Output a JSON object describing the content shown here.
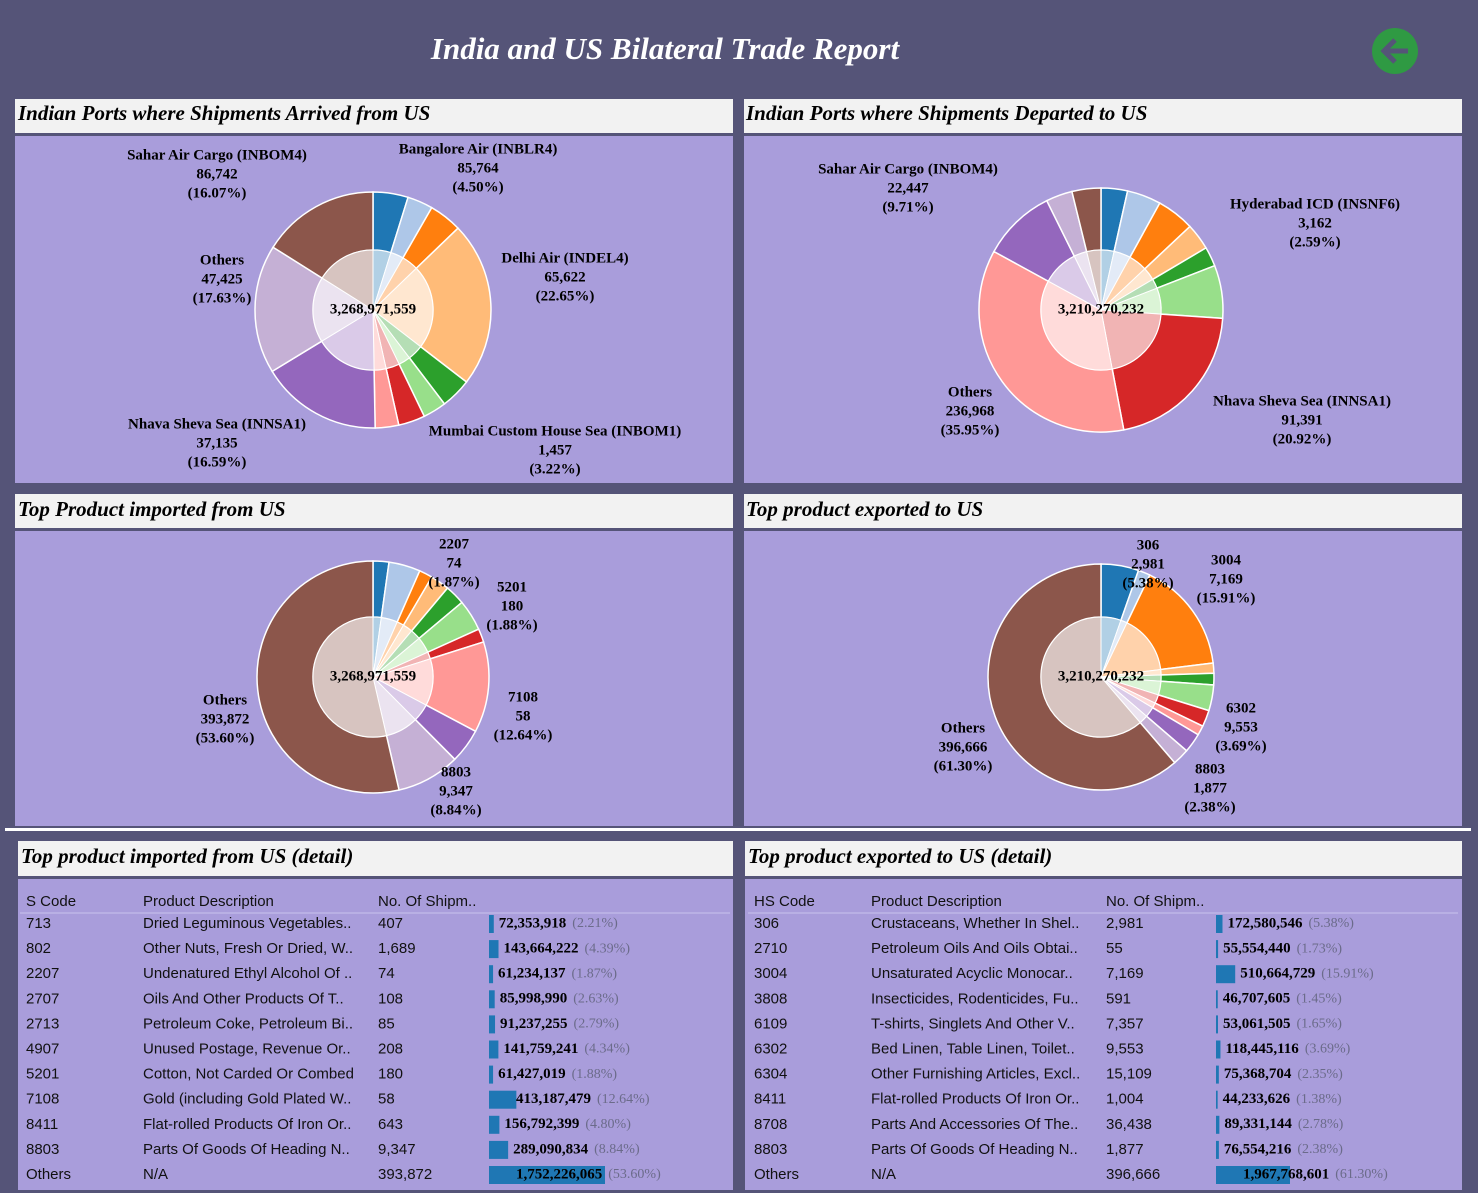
{
  "title": "India and US Bilateral Trade Report",
  "chart_data": [
    {
      "type": "pie",
      "title": "Indian Ports where Shipments Arrived from US",
      "center_label": "3,268,971,559",
      "categories": [
        null,
        null,
        "Bangalore Air (INBLR4)",
        "Delhi Air (INDEL4)",
        null,
        null,
        null,
        "Mumbai Custom House Sea (INBOM1)",
        "Nhava Sheva Sea (INNSA1)",
        "Others",
        "Sahar Air Cargo (INBOM4)"
      ],
      "values": [
        4.8,
        3.5,
        4.5,
        22.65,
        4.2,
        3.2,
        3.64,
        3.22,
        16.59,
        17.63,
        16.07
      ],
      "value_labels": [
        null,
        null,
        "(4.50%)",
        "(22.65%)",
        null,
        null,
        null,
        "(3.22%)",
        "(16.59%)",
        "(17.63%)",
        "(16.07%)"
      ],
      "count_labels": [
        null,
        null,
        "85,764",
        "65,622",
        null,
        null,
        null,
        "1,457",
        "37,135",
        "47,425",
        "86,742"
      ],
      "colors": [
        "#1f77b4",
        "#aec7e8",
        "#ff7f0e",
        "#ffbb78",
        "#2ca02c",
        "#98df8a",
        "#d62728",
        "#ff9896",
        "#9467bd",
        "#c5b0d5",
        "#8c564b"
      ]
    },
    {
      "type": "pie",
      "title": "Indian Ports where Shipments Departed to US",
      "center_label": "3,210,270,232",
      "categories": [
        null,
        null,
        null,
        null,
        "Hyderabad ICD (INSNF6)",
        null,
        "Nhava Sheva Sea (INNSA1)",
        "Others",
        "Sahar Air Cargo (INBOM4)",
        null,
        null
      ],
      "values": [
        3.5,
        4.5,
        5,
        3.5,
        2.59,
        7,
        20.92,
        35.95,
        9.71,
        3.5,
        3.83
      ],
      "value_labels": [
        null,
        null,
        null,
        null,
        "(2.59%)",
        null,
        "(20.92%)",
        "(35.95%)",
        "(9.71%)",
        null,
        null
      ],
      "count_labels": [
        null,
        null,
        null,
        null,
        "3,162",
        null,
        "91,391",
        "236,968",
        "22,447",
        null,
        null
      ],
      "colors": [
        "#1f77b4",
        "#aec7e8",
        "#ff7f0e",
        "#ffbb78",
        "#2ca02c",
        "#98df8a",
        "#d62728",
        "#ff9896",
        "#9467bd",
        "#c5b0d5",
        "#8c564b"
      ]
    },
    {
      "type": "pie",
      "title": "Top Product imported from US",
      "center_label": "3,268,971,559",
      "categories": [
        null,
        null,
        "2207",
        null,
        null,
        null,
        "5201",
        "7108",
        null,
        "8803",
        "Others"
      ],
      "values": [
        2.21,
        4.39,
        1.87,
        2.63,
        2.79,
        4.34,
        1.88,
        12.64,
        4.8,
        8.84,
        53.6
      ],
      "value_labels": [
        null,
        null,
        "(1.87%)",
        null,
        null,
        null,
        "(1.88%)",
        "(12.64%)",
        null,
        "(8.84%)",
        "(53.60%)"
      ],
      "count_labels": [
        null,
        null,
        "74",
        null,
        null,
        null,
        "180",
        "58",
        null,
        "9,347",
        "393,872"
      ],
      "colors": [
        "#1f77b4",
        "#aec7e8",
        "#ff7f0e",
        "#ffbb78",
        "#2ca02c",
        "#98df8a",
        "#d62728",
        "#ff9896",
        "#9467bd",
        "#c5b0d5",
        "#8c564b"
      ]
    },
    {
      "type": "pie",
      "title": "Top product exported to US",
      "center_label": "3,210,270,232",
      "categories": [
        "306",
        null,
        "3004",
        null,
        null,
        "6302",
        null,
        null,
        null,
        "8803",
        "Others"
      ],
      "values": [
        5.38,
        1.73,
        15.91,
        1.45,
        1.65,
        3.69,
        2.35,
        1.38,
        2.78,
        2.38,
        61.3
      ],
      "value_labels": [
        "(5.38%)",
        null,
        "(15.91%)",
        null,
        null,
        "(3.69%)",
        null,
        null,
        null,
        "(2.38%)",
        "(61.30%)"
      ],
      "count_labels": [
        "2,981",
        null,
        "7,169",
        null,
        null,
        "9,553",
        null,
        null,
        null,
        "1,877",
        "396,666"
      ],
      "colors": [
        "#1f77b4",
        "#aec7e8",
        "#ff7f0e",
        "#ffbb78",
        "#2ca02c",
        "#98df8a",
        "#d62728",
        "#ff9896",
        "#9467bd",
        "#c5b0d5",
        "#8c564b"
      ]
    }
  ],
  "tables": [
    {
      "title": "Top product imported from US (detail)",
      "columns": [
        "S Code",
        "Product Description",
        "No. Of Shipm.."
      ],
      "bar_color": "#1f77b4",
      "rows": [
        {
          "code": "713",
          "description": "Dried Leguminous Vegetables..",
          "shipments": "407",
          "value": 72353918,
          "value_label": "72,353,918",
          "share_label": "(2.21%)"
        },
        {
          "code": "802",
          "description": "Other Nuts, Fresh Or Dried, W..",
          "shipments": "1,689",
          "value": 143664222,
          "value_label": "143,664,222",
          "share_label": "(4.39%)"
        },
        {
          "code": "2207",
          "description": "Undenatured Ethyl Alcohol Of ..",
          "shipments": "74",
          "value": 61234137,
          "value_label": "61,234,137",
          "share_label": "(1.87%)"
        },
        {
          "code": "2707",
          "description": "Oils And Other Products Of T..",
          "shipments": "108",
          "value": 85998990,
          "value_label": "85,998,990",
          "share_label": "(2.63%)"
        },
        {
          "code": "2713",
          "description": "Petroleum Coke, Petroleum Bi..",
          "shipments": "85",
          "value": 91237255,
          "value_label": "91,237,255",
          "share_label": "(2.79%)"
        },
        {
          "code": "4907",
          "description": "Unused Postage, Revenue Or..",
          "shipments": "208",
          "value": 141759241,
          "value_label": "141,759,241",
          "share_label": "(4.34%)"
        },
        {
          "code": "5201",
          "description": "Cotton, Not Carded Or Combed",
          "shipments": "180",
          "value": 61427019,
          "value_label": "61,427,019",
          "share_label": "(1.88%)"
        },
        {
          "code": "7108",
          "description": "Gold (including Gold Plated W..",
          "shipments": "58",
          "value": 413187479,
          "value_label": "413,187,479",
          "share_label": "(12.64%)"
        },
        {
          "code": "8411",
          "description": "Flat-rolled Products Of Iron Or..",
          "shipments": "643",
          "value": 156792399,
          "value_label": "156,792,399",
          "share_label": "(4.80%)"
        },
        {
          "code": "8803",
          "description": "Parts Of Goods Of Heading N..",
          "shipments": "9,347",
          "value": 289090834,
          "value_label": "289,090,834",
          "share_label": "(8.84%)"
        },
        {
          "code": "Others",
          "description": "N/A",
          "shipments": "393,872",
          "value": 1752226065,
          "value_label": "1,752,226,065",
          "share_label": "(53.60%)"
        }
      ]
    },
    {
      "title": "Top product exported to US (detail)",
      "columns": [
        "HS Code",
        "Product Description",
        "No. Of Shipm.."
      ],
      "bar_color": "#1f77b4",
      "rows": [
        {
          "code": "306",
          "description": "Crustaceans, Whether In Shel..",
          "shipments": "2,981",
          "value": 172580546,
          "value_label": "172,580,546",
          "share_label": "(5.38%)"
        },
        {
          "code": "2710",
          "description": "Petroleum Oils And Oils Obtai..",
          "shipments": "55",
          "value": 55554440,
          "value_label": "55,554,440",
          "share_label": "(1.73%)"
        },
        {
          "code": "3004",
          "description": "Unsaturated Acyclic Monocar..",
          "shipments": "7,169",
          "value": 510664729,
          "value_label": "510,664,729",
          "share_label": "(15.91%)"
        },
        {
          "code": "3808",
          "description": "Insecticides, Rodenticides, Fu..",
          "shipments": "591",
          "value": 46707605,
          "value_label": "46,707,605",
          "share_label": "(1.45%)"
        },
        {
          "code": "6109",
          "description": "T-shirts, Singlets And Other V..",
          "shipments": "7,357",
          "value": 53061505,
          "value_label": "53,061,505",
          "share_label": "(1.65%)"
        },
        {
          "code": "6302",
          "description": "Bed Linen, Table Linen, Toilet..",
          "shipments": "9,553",
          "value": 118445116,
          "value_label": "118,445,116",
          "share_label": "(3.69%)"
        },
        {
          "code": "6304",
          "description": "Other Furnishing Articles, Excl..",
          "shipments": "15,109",
          "value": 75368704,
          "value_label": "75,368,704",
          "share_label": "(2.35%)"
        },
        {
          "code": "8411",
          "description": "Flat-rolled Products Of Iron Or..",
          "shipments": "1,004",
          "value": 44233626,
          "value_label": "44,233,626",
          "share_label": "(1.38%)"
        },
        {
          "code": "8708",
          "description": "Parts And Accessories Of The..",
          "shipments": "36,438",
          "value": 89331144,
          "value_label": "89,331,144",
          "share_label": "(2.78%)"
        },
        {
          "code": "8803",
          "description": "Parts Of Goods Of Heading N..",
          "shipments": "1,877",
          "value": 76554216,
          "value_label": "76,554,216",
          "share_label": "(2.38%)"
        },
        {
          "code": "Others",
          "description": "N/A",
          "shipments": "396,666",
          "value": 1967768601,
          "value_label": "1,967,768,601",
          "share_label": "(61.30%)"
        }
      ]
    }
  ]
}
